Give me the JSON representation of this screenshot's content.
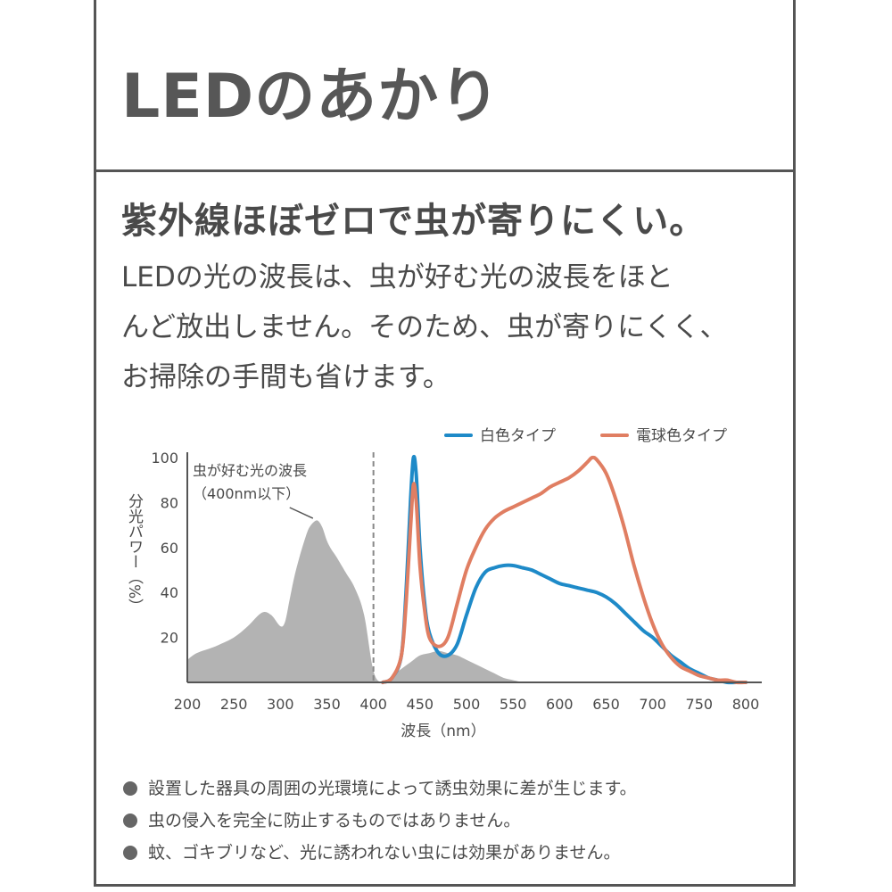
{
  "header": {
    "title": "LEDのあかり"
  },
  "headline": "紫外線ほぼゼロで虫が寄りにくい。",
  "body_lines": [
    "LEDの光の波長は、虫が好む光の波長をほと",
    "んど放出しません。そのため、虫が寄りにくく、",
    "お掃除の手間も省けます。"
  ],
  "chart_data": {
    "type": "line",
    "ylabel": "分光パワー（%）",
    "xlabel": "波長（nm）",
    "xlim": [
      200,
      800
    ],
    "ylim": [
      0,
      100
    ],
    "x_ticks": [
      "200",
      "250",
      "300",
      "350",
      "400",
      "450",
      "500",
      "550",
      "600",
      "650",
      "700",
      "750",
      "800"
    ],
    "y_ticks": [
      "20",
      "40",
      "60",
      "80",
      "100"
    ],
    "grid": false,
    "legend_position": "top-right",
    "insect_region": {
      "label_lines": [
        "虫が好む光の波長",
        "（400nm以下）"
      ],
      "boundary_x": 400,
      "color": "#b3b3b3",
      "x": [
        200,
        210,
        230,
        250,
        265,
        280,
        290,
        300,
        305,
        310,
        315,
        320,
        325,
        330,
        335,
        340,
        345,
        350,
        355,
        360,
        370,
        380,
        390,
        400,
        410,
        420,
        430,
        440,
        450,
        460,
        470,
        480,
        490,
        500,
        510,
        520,
        530,
        540,
        550,
        560
      ],
      "y": [
        10,
        13,
        16,
        20,
        25,
        31,
        30,
        25,
        27,
        37,
        47,
        55,
        62,
        68,
        71,
        72,
        69,
        63,
        59,
        56,
        49,
        42,
        30,
        5,
        0,
        3,
        6,
        9,
        12,
        13,
        14,
        13,
        12,
        10,
        8,
        6,
        4,
        2,
        1,
        0
      ]
    },
    "series": [
      {
        "name": "白色タイプ",
        "color": "#1e8ac8",
        "x": [
          410,
          420,
          430,
          435,
          440,
          443,
          446,
          450,
          455,
          460,
          470,
          480,
          490,
          500,
          510,
          520,
          530,
          540,
          550,
          560,
          570,
          580,
          590,
          600,
          610,
          620,
          630,
          640,
          650,
          660,
          670,
          680,
          690,
          700,
          710,
          720,
          730,
          740,
          750,
          760,
          770,
          780,
          790,
          800
        ],
        "y": [
          0,
          2,
          12,
          40,
          82,
          100,
          92,
          60,
          35,
          22,
          13,
          12,
          17,
          30,
          42,
          49,
          51,
          52,
          52,
          51,
          50,
          48,
          46,
          44,
          43,
          42,
          41,
          40,
          38,
          35,
          31,
          27,
          23,
          20,
          16,
          12,
          9,
          6,
          4,
          2,
          1,
          0,
          0,
          0
        ]
      },
      {
        "name": "電球色タイプ",
        "color": "#e07e62",
        "x": [
          410,
          420,
          430,
          435,
          440,
          443,
          446,
          450,
          455,
          460,
          470,
          480,
          490,
          500,
          510,
          520,
          530,
          540,
          550,
          560,
          570,
          580,
          590,
          600,
          610,
          620,
          630,
          635,
          640,
          650,
          660,
          670,
          680,
          690,
          700,
          710,
          720,
          730,
          740,
          750,
          760,
          770,
          780,
          790,
          800
        ],
        "y": [
          0,
          2,
          12,
          35,
          70,
          88,
          80,
          52,
          32,
          20,
          16,
          20,
          35,
          50,
          60,
          68,
          73,
          76,
          78,
          80,
          82,
          84,
          87,
          89,
          91,
          94,
          98,
          100,
          99,
          93,
          82,
          68,
          52,
          38,
          26,
          17,
          11,
          7,
          5,
          3,
          2,
          1,
          1,
          0,
          0
        ]
      }
    ]
  },
  "notes": [
    "設置した器具の周囲の光環境によって誘虫効果に差が生じます。",
    "虫の侵入を完全に防止するものではありません。",
    "蚊、ゴキブリなど、光に誘われない虫には効果がありません。"
  ]
}
